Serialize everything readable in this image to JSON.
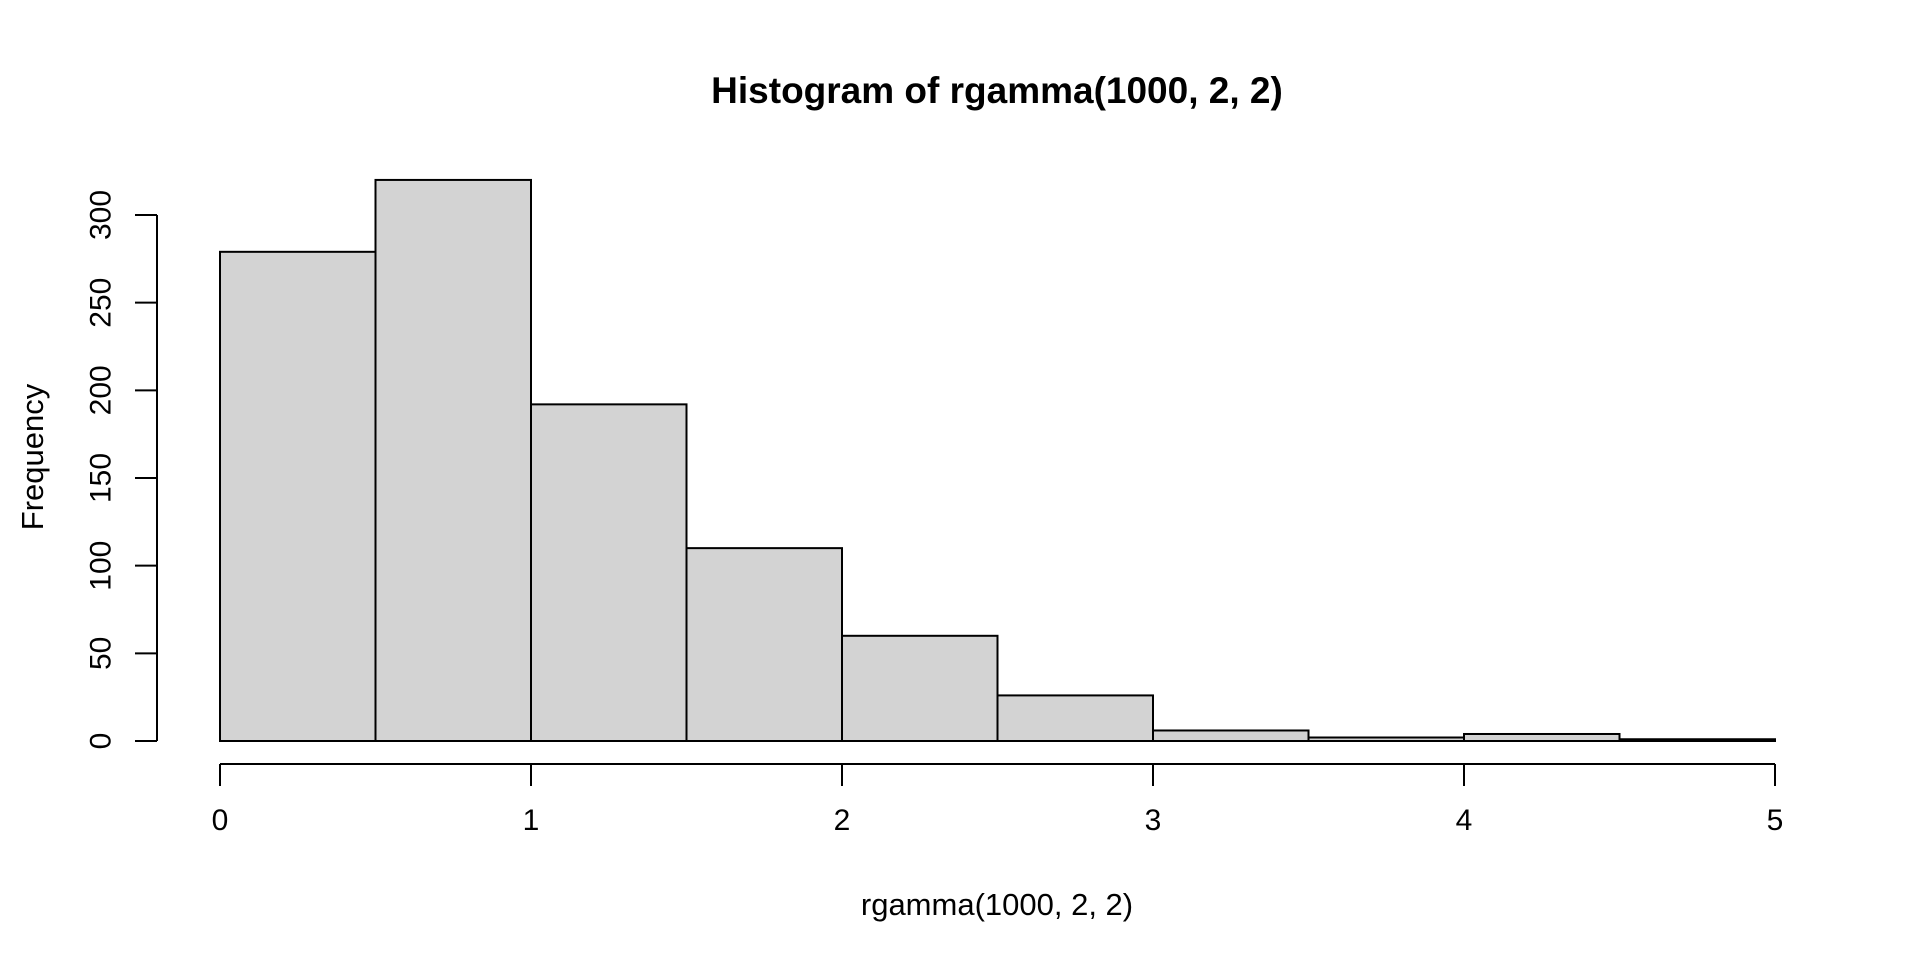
{
  "chart_data": {
    "type": "bar",
    "subtype": "histogram",
    "title": "Histogram of rgamma(1000, 2, 2)",
    "xlabel": "rgamma(1000, 2, 2)",
    "ylabel": "Frequency",
    "bin_edges": [
      0,
      0.5,
      1,
      1.5,
      2,
      2.5,
      3,
      3.5,
      4,
      4.5,
      5
    ],
    "counts": [
      279,
      320,
      192,
      110,
      60,
      26,
      6,
      2,
      4,
      1
    ],
    "total_n": 1000,
    "x_ticks": [
      0,
      1,
      2,
      3,
      4,
      5
    ],
    "y_ticks": [
      0,
      50,
      100,
      150,
      200,
      250,
      300
    ],
    "xlim": [
      0,
      5
    ],
    "ylim": [
      0,
      320
    ],
    "grid": "off",
    "legend": "none",
    "colors": {
      "bar_fill": "#d3d3d3",
      "bar_stroke": "#000000",
      "axis": "#000000",
      "text": "#000000",
      "background": "#ffffff"
    }
  }
}
